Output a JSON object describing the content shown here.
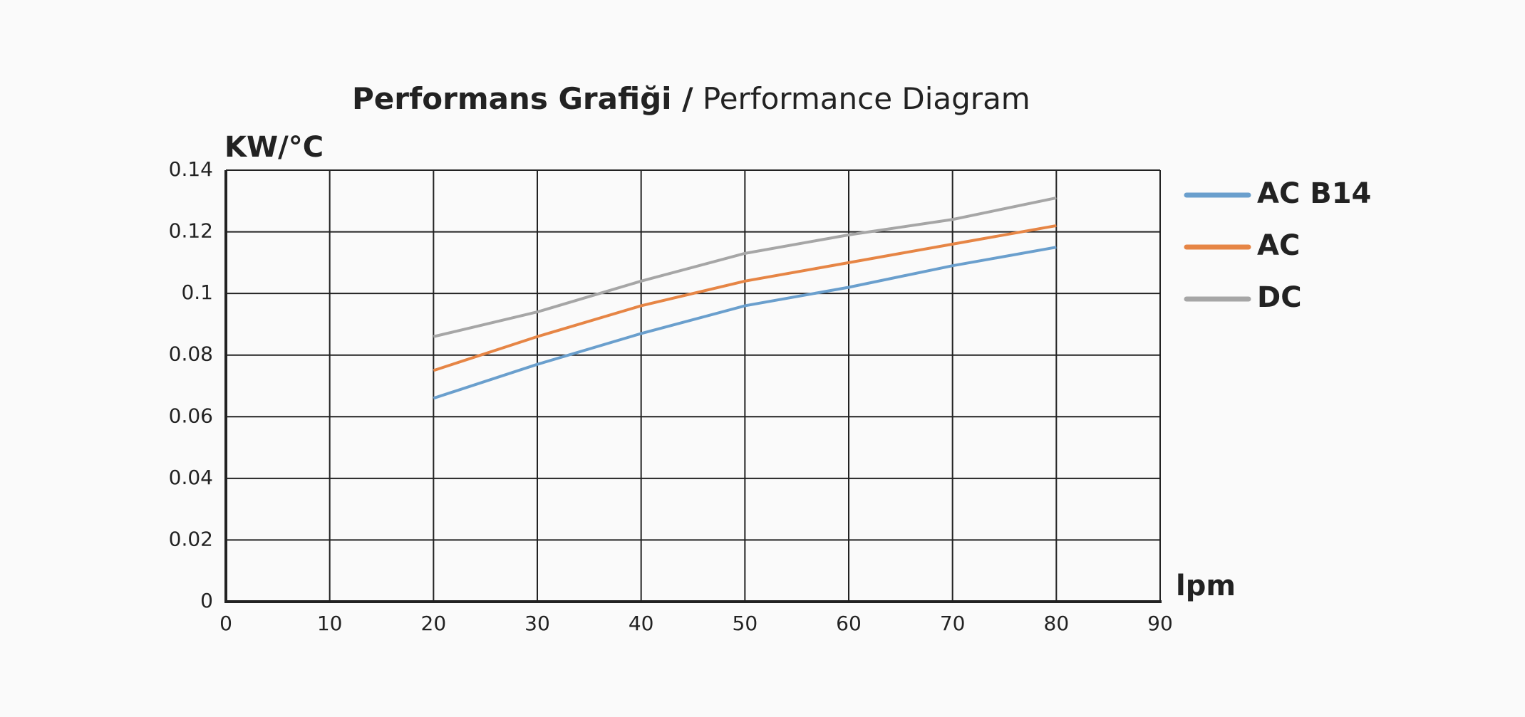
{
  "chart_data": {
    "type": "line",
    "title_parts": [
      "Performans Grafiği /",
      "Performance Diagram"
    ],
    "y_label": "KW/°C",
    "x_label": "lpm",
    "x": [
      20,
      30,
      40,
      50,
      60,
      70,
      80
    ],
    "series": [
      {
        "name": "AC B14",
        "color": "#6a9fcd",
        "values": [
          0.066,
          0.077,
          0.087,
          0.096,
          0.102,
          0.109,
          0.115
        ]
      },
      {
        "name": "AC",
        "color": "#e68545",
        "values": [
          0.075,
          0.086,
          0.096,
          0.104,
          0.11,
          0.116,
          0.122
        ]
      },
      {
        "name": "DC",
        "color": "#a6a6a6",
        "values": [
          0.086,
          0.094,
          0.104,
          0.113,
          0.119,
          0.124,
          0.131
        ]
      }
    ],
    "xlim": [
      0,
      90
    ],
    "xticks": [
      0,
      10,
      20,
      30,
      40,
      50,
      60,
      70,
      80,
      90
    ],
    "ylim": [
      0,
      0.14
    ],
    "yticks": [
      0,
      0.02,
      0.04,
      0.06,
      0.08,
      0.1,
      0.12,
      0.14
    ],
    "grid": true,
    "legend": "right"
  }
}
